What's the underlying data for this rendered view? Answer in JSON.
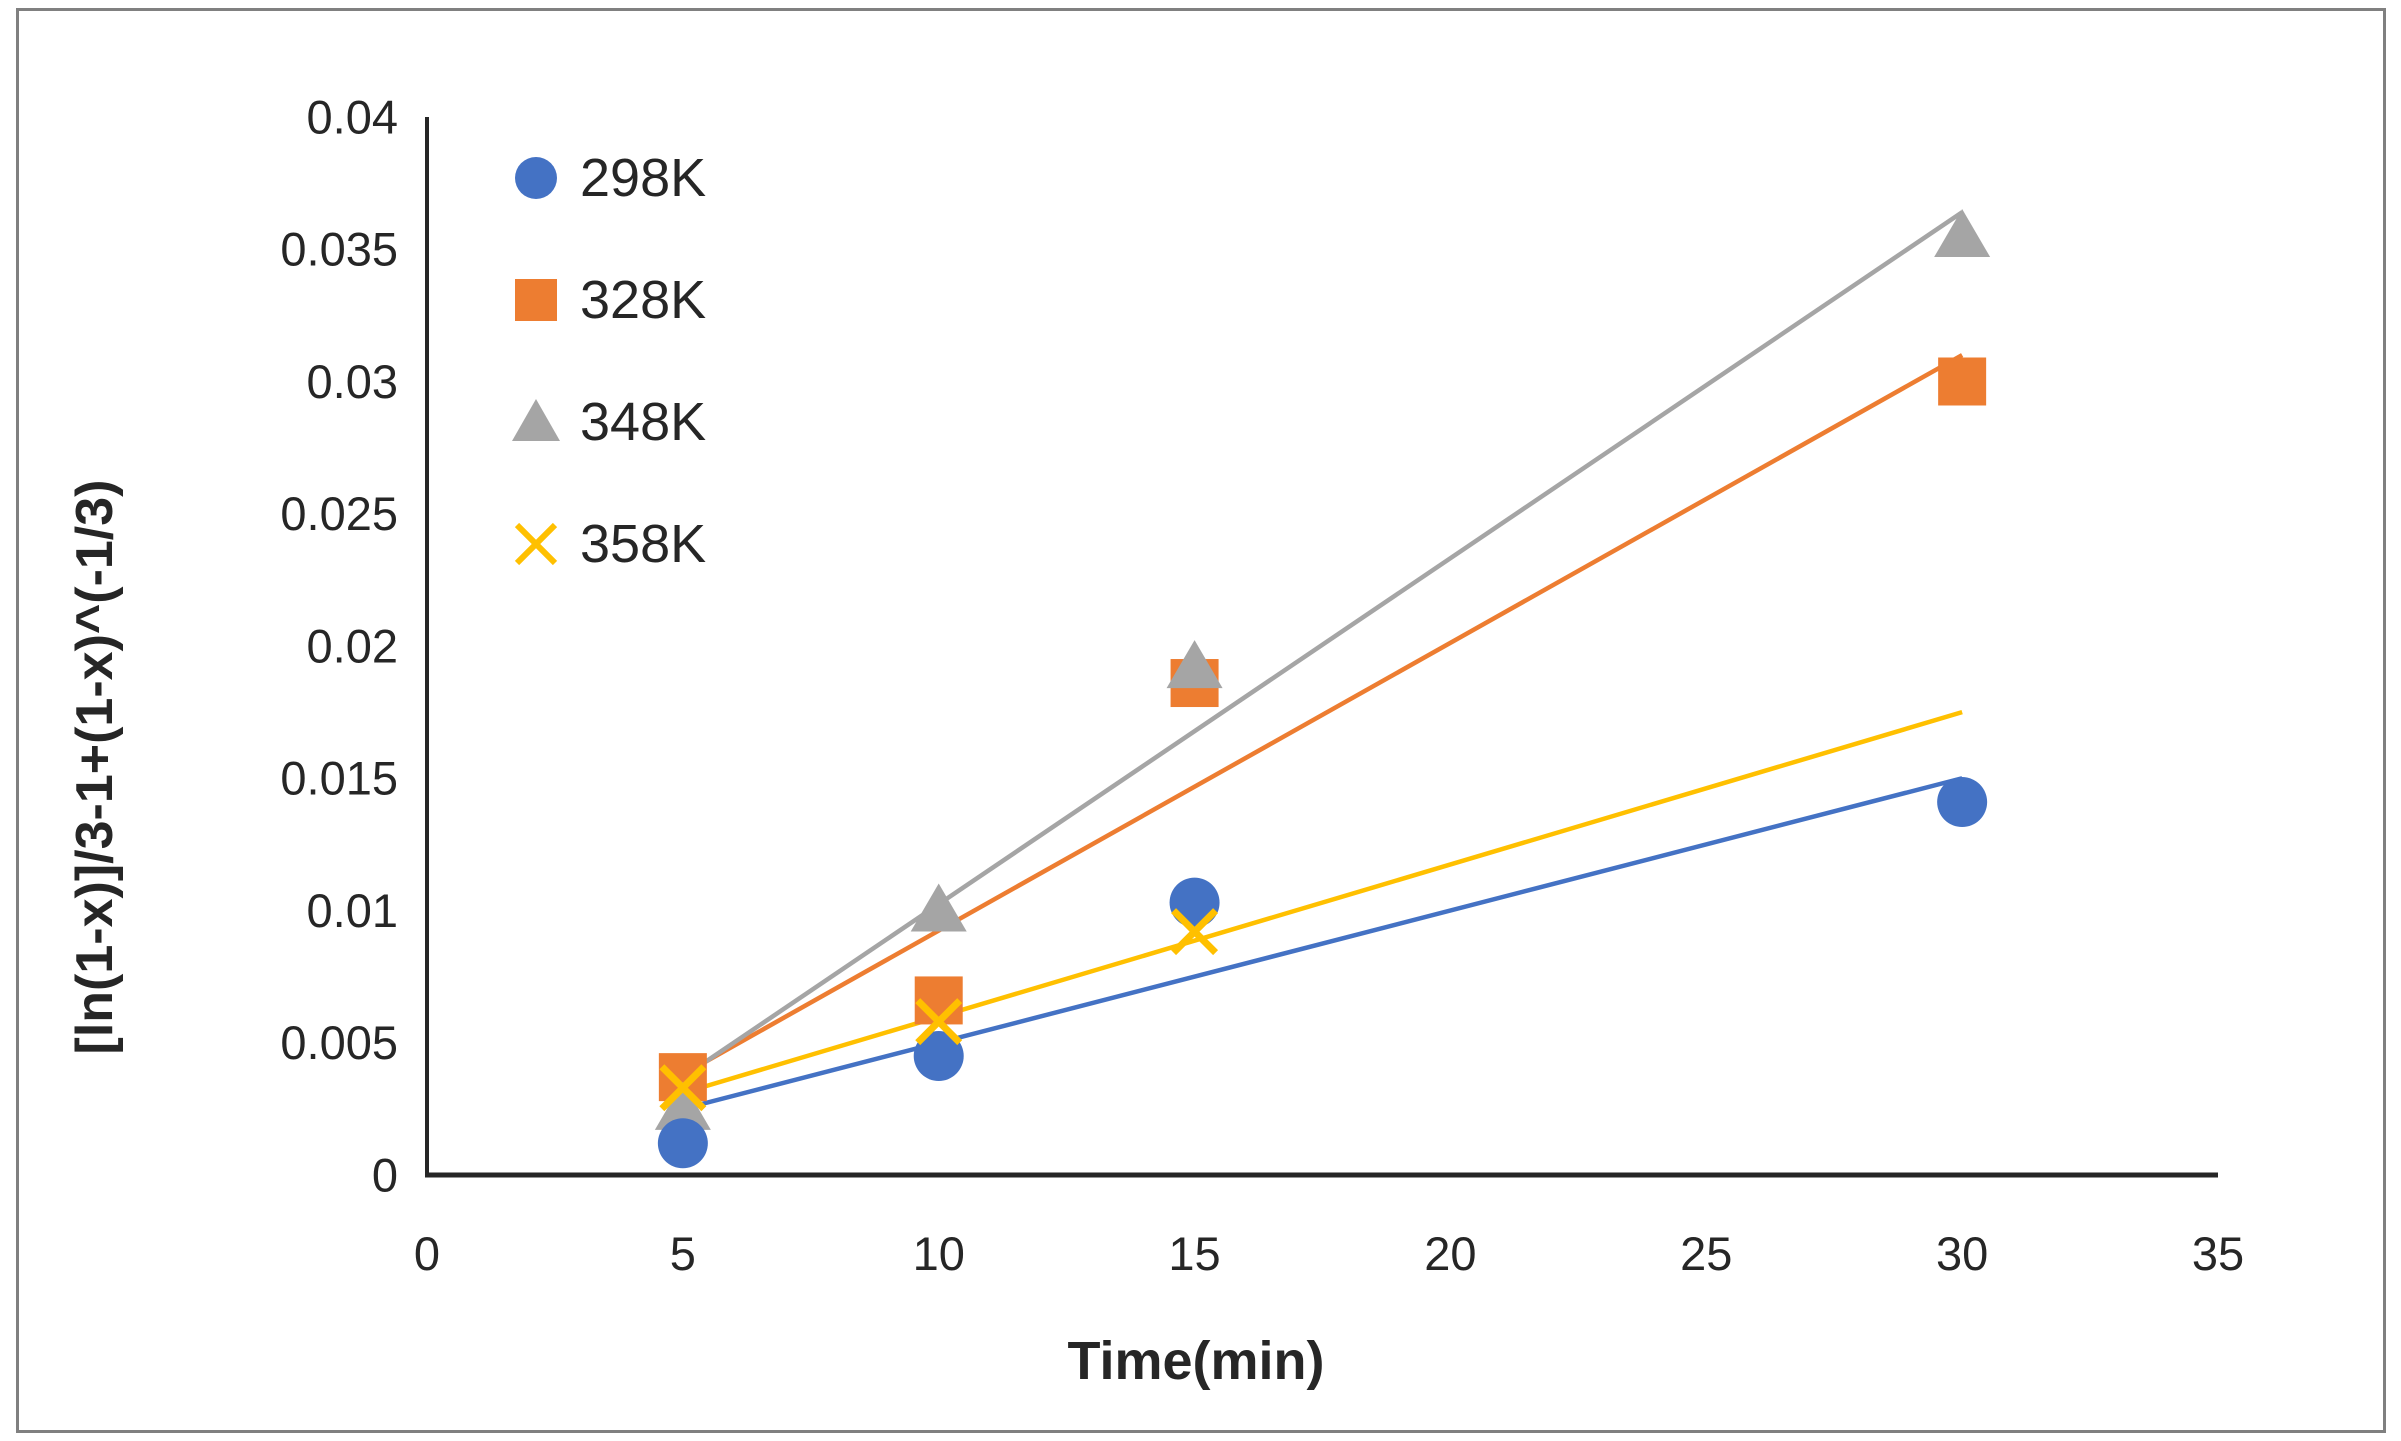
{
  "frame": {
    "border_color": "#808080",
    "background": "#ffffff"
  },
  "chart_data": {
    "type": "scatter",
    "title": "",
    "xlabel": "Time(min)",
    "ylabel": "[ln(1-x)]/3-1+(1-x)^(-1/3)",
    "xlim": [
      0,
      35
    ],
    "ylim": [
      0,
      0.04
    ],
    "x_ticks": [
      {
        "v": 0,
        "label": "0"
      },
      {
        "v": 5,
        "label": "5"
      },
      {
        "v": 10,
        "label": "10"
      },
      {
        "v": 15,
        "label": "15"
      },
      {
        "v": 20,
        "label": "20"
      },
      {
        "v": 25,
        "label": "25"
      },
      {
        "v": 30,
        "label": "30"
      },
      {
        "v": 35,
        "label": "35"
      }
    ],
    "y_ticks": [
      {
        "v": 0,
        "label": "0"
      },
      {
        "v": 0.005,
        "label": "0.005"
      },
      {
        "v": 0.01,
        "label": "0.01"
      },
      {
        "v": 0.015,
        "label": "0.015"
      },
      {
        "v": 0.02,
        "label": "0.02"
      },
      {
        "v": 0.025,
        "label": "0.025"
      },
      {
        "v": 0.03,
        "label": "0.03"
      },
      {
        "v": 0.035,
        "label": "0.035"
      },
      {
        "v": 0.04,
        "label": "0.04"
      }
    ],
    "grid": false,
    "legend_position": "top-left-inside",
    "axis_color": "#262626",
    "text_color": "#262626",
    "series": [
      {
        "name": "298K",
        "marker": "circle",
        "color": "#4472C4",
        "points": [
          [
            5,
            0.0012
          ],
          [
            10,
            0.0045
          ],
          [
            15,
            0.0103
          ],
          [
            30,
            0.0141
          ]
        ],
        "trendline": {
          "x1": 5,
          "y1": 0.0025,
          "x2": 30,
          "y2": 0.015
        }
      },
      {
        "name": "328K",
        "marker": "square",
        "color": "#ED7D31",
        "points": [
          [
            5,
            0.0037
          ],
          [
            10,
            0.0066
          ],
          [
            15,
            0.0186
          ],
          [
            30,
            0.03
          ]
        ],
        "trendline": {
          "x1": 5,
          "y1": 0.0038,
          "x2": 30,
          "y2": 0.031
        }
      },
      {
        "name": "348K",
        "marker": "triangle",
        "color": "#A5A5A5",
        "points": [
          [
            5,
            0.0025
          ],
          [
            10,
            0.01
          ],
          [
            15,
            0.0192
          ],
          [
            30,
            0.0355
          ]
        ],
        "trendline": {
          "x1": 5,
          "y1": 0.0037,
          "x2": 30,
          "y2": 0.0364
        }
      },
      {
        "name": "358K",
        "marker": "x",
        "color": "#FFC000",
        "points": [
          [
            5,
            0.0033
          ],
          [
            10,
            0.0058
          ],
          [
            15,
            0.0092
          ]
        ],
        "trendline": {
          "x1": 5,
          "y1": 0.0031,
          "x2": 30,
          "y2": 0.0175
        }
      }
    ]
  }
}
